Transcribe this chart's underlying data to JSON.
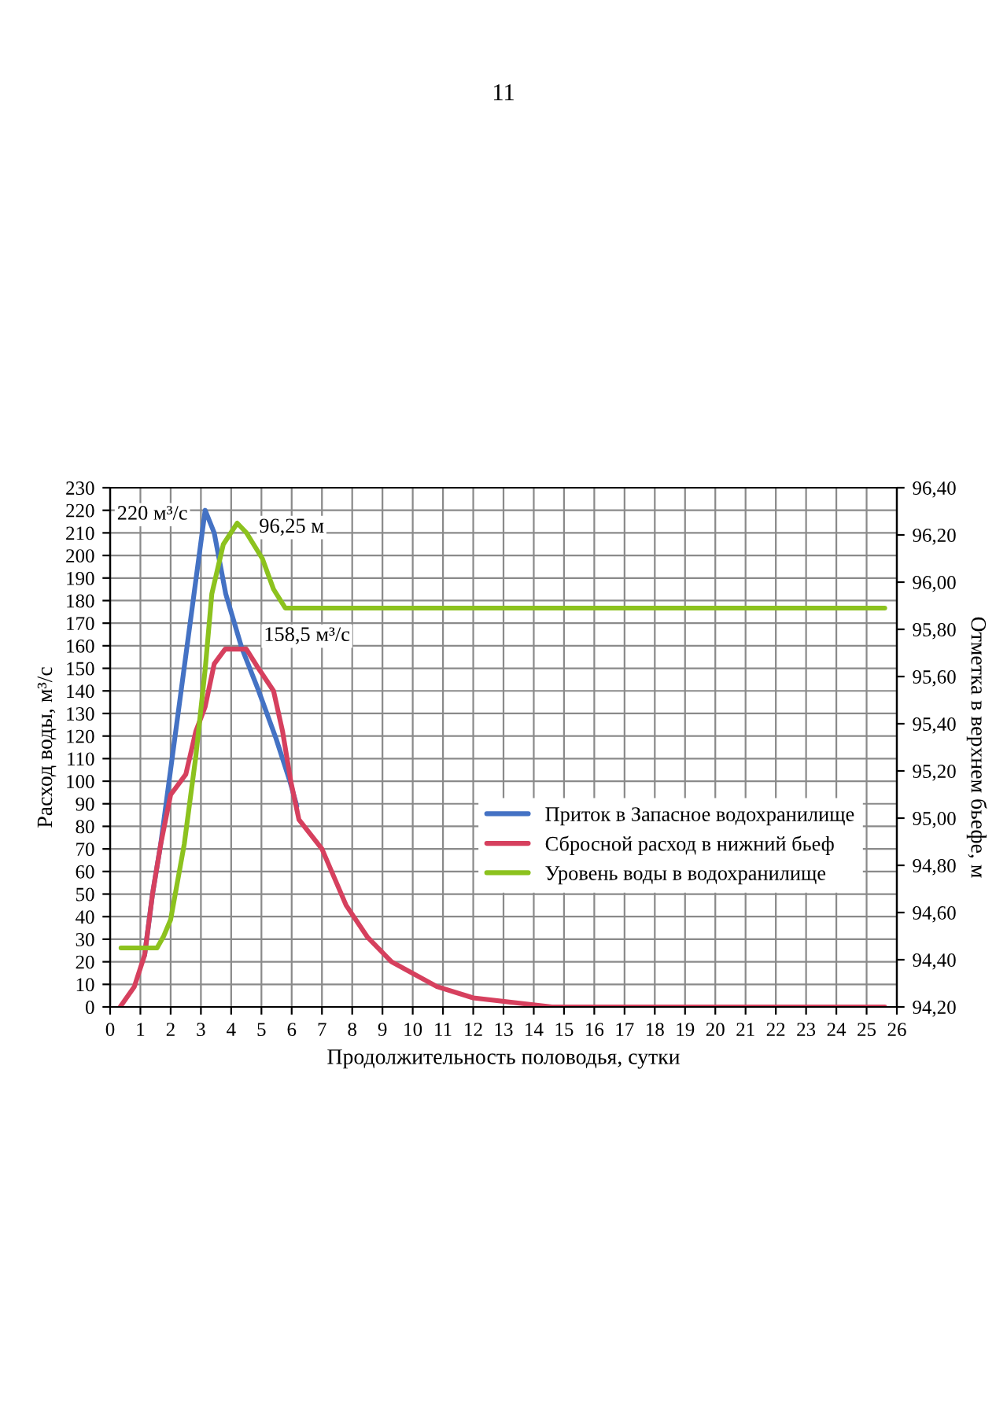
{
  "chart_data": {
    "type": "line",
    "xlabel": "Продолжительность половодья, сутки",
    "ylabel": "Расход воды, м³/с",
    "y2label": "Отметка в верхнем бьефе, м",
    "xlim": [
      0,
      26
    ],
    "xticks": [
      0,
      1,
      2,
      3,
      4,
      5,
      6,
      7,
      8,
      9,
      10,
      11,
      12,
      13,
      14,
      15,
      16,
      17,
      18,
      19,
      20,
      21,
      22,
      23,
      24,
      25,
      26
    ],
    "ylim": [
      0,
      230
    ],
    "yticks": [
      0,
      10,
      20,
      30,
      40,
      50,
      60,
      70,
      80,
      90,
      100,
      110,
      120,
      130,
      140,
      150,
      160,
      170,
      180,
      190,
      200,
      210,
      220,
      230
    ],
    "y2lim": [
      94.2,
      96.4
    ],
    "y2ticks": [
      {
        "value": 94.2,
        "label": "94,20"
      },
      {
        "value": 94.4,
        "label": "94,40"
      },
      {
        "value": 94.6,
        "label": "94,60"
      },
      {
        "value": 94.8,
        "label": "94,80"
      },
      {
        "value": 95.0,
        "label": "95,00"
      },
      {
        "value": 95.2,
        "label": "95,20"
      },
      {
        "value": 95.4,
        "label": "95,40"
      },
      {
        "value": 95.6,
        "label": "95,60"
      },
      {
        "value": 95.8,
        "label": "95,80"
      },
      {
        "value": 96.0,
        "label": "96,00"
      },
      {
        "value": 96.2,
        "label": "96,20"
      },
      {
        "value": 96.4,
        "label": "96,40"
      }
    ],
    "grid": true,
    "legend": "bottom right",
    "line_style": "solid",
    "marker": "none",
    "series": [
      {
        "name": "Приток в Запасное водохранилище",
        "color": "#4472c4",
        "x": [
          1.14,
          1.4,
          1.67,
          3.14,
          3.44,
          3.82,
          4.35,
          4.88,
          5.48,
          5.94,
          6.17
        ],
        "values": [
          23,
          50,
          72,
          220,
          210,
          183,
          159,
          141,
          119,
          100,
          89
        ]
      },
      {
        "name": "Сбросной расход в нижний бьеф",
        "color": "#d6405e",
        "x": [
          0.33,
          0.8,
          1.14,
          1.4,
          1.67,
          2.0,
          2.5,
          2.83,
          3.14,
          3.44,
          3.8,
          4.5,
          4.9,
          5.4,
          5.7,
          5.97,
          6.24,
          7.0,
          7.8,
          8.5,
          9.3,
          10.8,
          12.0,
          14.6,
          25.6
        ],
        "values": [
          0,
          9,
          23,
          50,
          72,
          94,
          103,
          122,
          133,
          152,
          158.5,
          158.5,
          150,
          140,
          122,
          100,
          83,
          70,
          45,
          31,
          20,
          9,
          4,
          0,
          0
        ]
      },
      {
        "name": "Уровень воды в водохранилище",
        "color": "#8cc21e",
        "axis": "y2",
        "x": [
          0.36,
          1.55,
          1.77,
          2.0,
          2.45,
          2.83,
          3.14,
          3.36,
          3.74,
          4.2,
          4.5,
          5.03,
          5.4,
          5.79,
          25.6
        ],
        "values": [
          94.45,
          94.45,
          94.5,
          94.57,
          94.89,
          95.26,
          95.63,
          95.95,
          96.16,
          96.25,
          96.21,
          96.1,
          95.97,
          95.89,
          95.89
        ]
      }
    ],
    "annotations": [
      "220 м³/с",
      "158,5 м³/с",
      "96,25 м",
      "11"
    ]
  }
}
